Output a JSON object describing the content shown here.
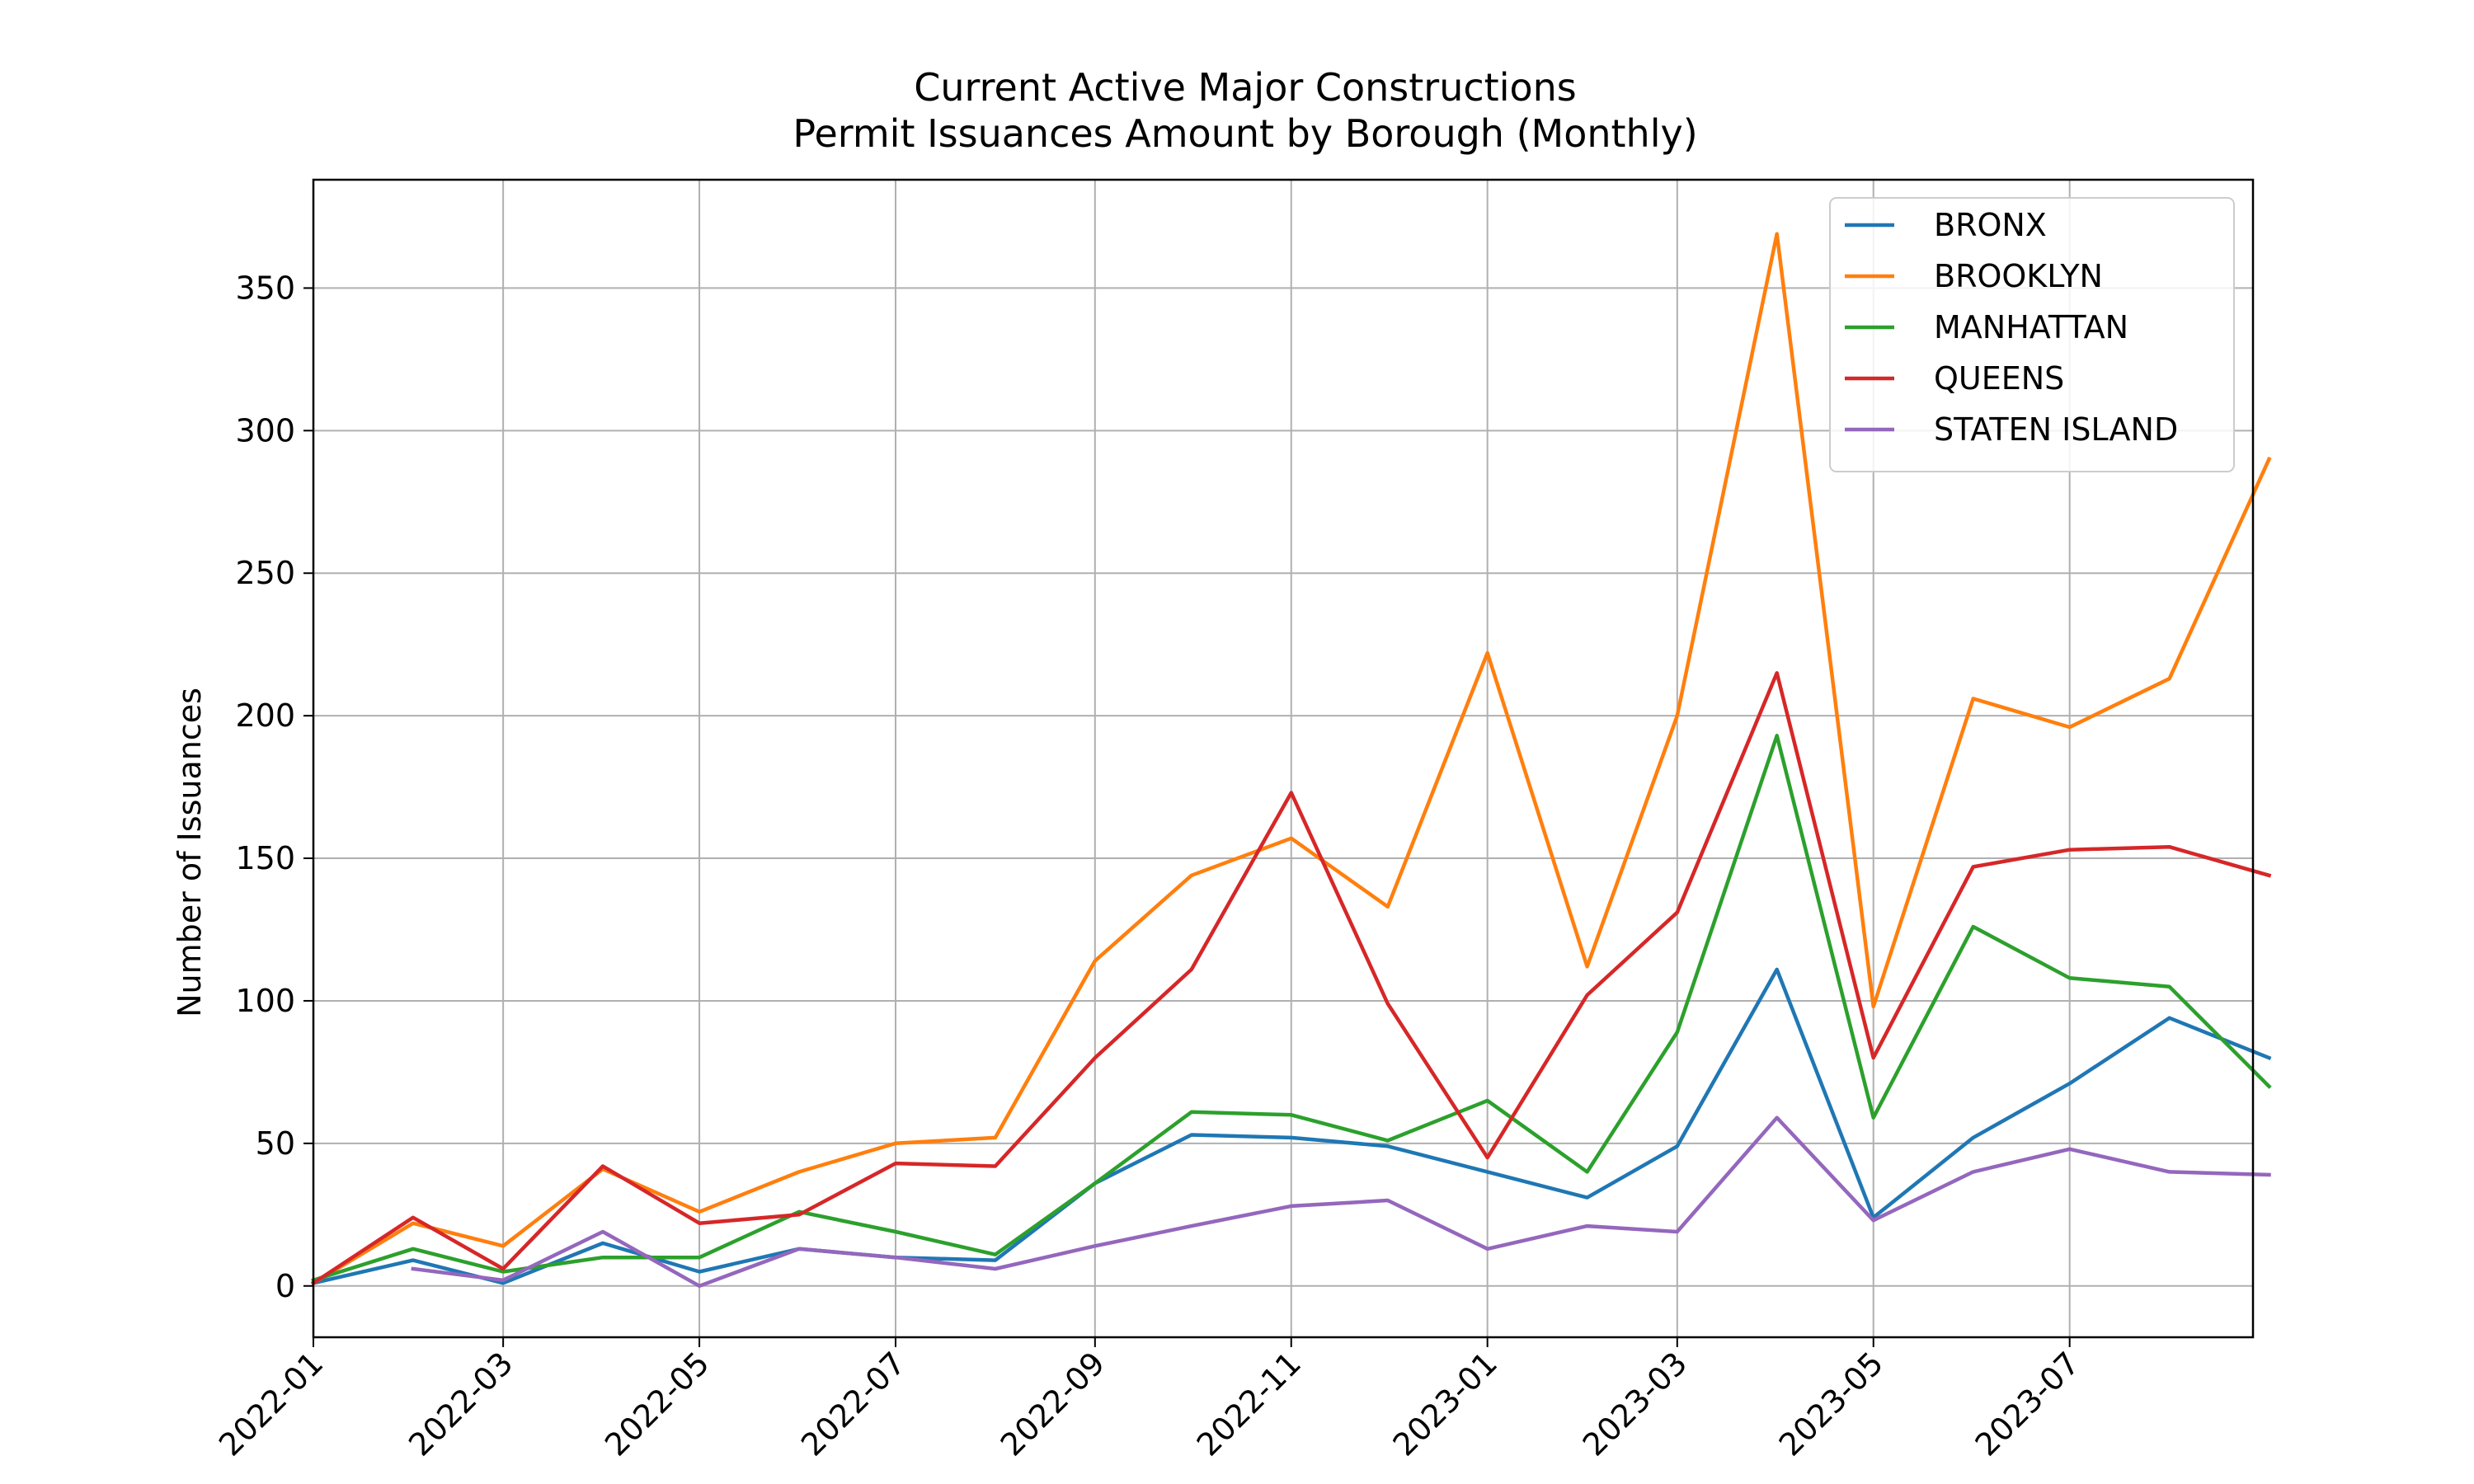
{
  "chart_data": {
    "type": "line",
    "title": "Current Active Major Constructions",
    "subtitle": "Permit Issuances Amount by Borough (Monthly)",
    "xlabel": "",
    "ylabel": "Number of Issuances",
    "x": [
      "2022-01",
      "2022-02",
      "2022-03",
      "2022-04",
      "2022-05",
      "2022-06",
      "2022-07",
      "2022-08",
      "2022-09",
      "2022-10",
      "2022-11",
      "2022-12",
      "2023-01",
      "2023-02",
      "2023-03",
      "2023-04",
      "2023-05",
      "2023-06",
      "2023-07",
      "2023-08",
      "2023-09"
    ],
    "xlim": [
      "2022-01",
      "2023-08-27"
    ],
    "xticks": [
      "2022-01",
      "2022-03",
      "2022-05",
      "2022-07",
      "2022-09",
      "2022-11",
      "2023-01",
      "2023-03",
      "2023-05",
      "2023-07"
    ],
    "ylim": [
      -18,
      388
    ],
    "yticks": [
      0,
      50,
      100,
      150,
      200,
      250,
      300,
      350
    ],
    "grid": true,
    "legend_position": "top-right",
    "series": [
      {
        "name": "BRONX",
        "color": "#1f77b4",
        "values": [
          1,
          9,
          1,
          15,
          5,
          13,
          10,
          9,
          36,
          53,
          52,
          49,
          40,
          31,
          49,
          111,
          24,
          52,
          71,
          94,
          80
        ]
      },
      {
        "name": "BROOKLYN",
        "color": "#ff7f0e",
        "values": [
          1,
          22,
          14,
          41,
          26,
          40,
          50,
          52,
          114,
          144,
          157,
          133,
          222,
          112,
          200,
          369,
          98,
          206,
          196,
          213,
          290
        ]
      },
      {
        "name": "MANHATTAN",
        "color": "#2ca02c",
        "values": [
          2,
          13,
          5,
          10,
          10,
          26,
          19,
          11,
          36,
          61,
          60,
          51,
          65,
          40,
          89,
          193,
          59,
          126,
          108,
          105,
          70
        ]
      },
      {
        "name": "QUEENS",
        "color": "#d62728",
        "values": [
          1,
          24,
          6,
          42,
          22,
          25,
          43,
          42,
          80,
          111,
          173,
          99,
          45,
          102,
          131,
          215,
          80,
          147,
          153,
          154,
          144
        ]
      },
      {
        "name": "STATEN ISLAND",
        "color": "#9467bd",
        "values": [
          null,
          6,
          2,
          19,
          0,
          13,
          10,
          6,
          14,
          21,
          28,
          30,
          13,
          21,
          19,
          59,
          23,
          40,
          48,
          40,
          39
        ]
      }
    ]
  }
}
